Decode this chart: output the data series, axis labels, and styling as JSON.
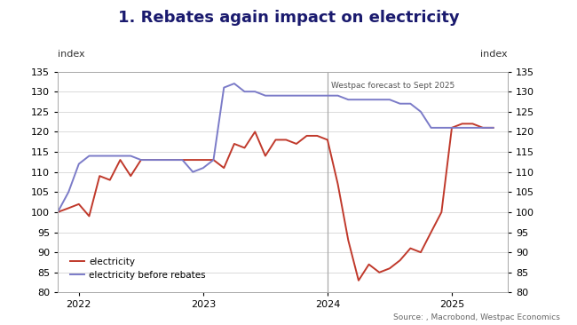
{
  "title": "1. Rebates again impact on electricity",
  "ylabel_left": "index",
  "ylabel_right": "index",
  "source": "Source: , Macrobond, Westpac Economics",
  "forecast_label": "Westpac forecast to Sept 2025",
  "forecast_x": 2024.0,
  "ylim": [
    80,
    135
  ],
  "yticks": [
    80,
    85,
    90,
    95,
    100,
    105,
    110,
    115,
    120,
    125,
    130,
    135
  ],
  "xlim_left": 2021.83,
  "xlim_right": 2025.45,
  "background_color": "#ffffff",
  "title_color": "#1a1a6e",
  "grid_color": "#cccccc",
  "elec_color": "#c0392b",
  "rebates_color": "#7b7bc8",
  "electricity_x": [
    2021.83,
    2021.917,
    2022.0,
    2022.083,
    2022.167,
    2022.25,
    2022.333,
    2022.417,
    2022.5,
    2022.583,
    2022.667,
    2022.75,
    2022.833,
    2022.917,
    2023.0,
    2023.083,
    2023.167,
    2023.25,
    2023.333,
    2023.417,
    2023.5,
    2023.583,
    2023.667,
    2023.75,
    2023.833,
    2023.917,
    2024.0,
    2024.083,
    2024.167,
    2024.25,
    2024.333,
    2024.417,
    2024.5,
    2024.583,
    2024.667,
    2024.75,
    2024.833,
    2024.917,
    2025.0,
    2025.083,
    2025.167,
    2025.25,
    2025.333
  ],
  "electricity_y": [
    100,
    101,
    102,
    99,
    109,
    108,
    113,
    109,
    113,
    113,
    113,
    113,
    113,
    113,
    113,
    113,
    111,
    117,
    116,
    120,
    114,
    118,
    118,
    117,
    119,
    119,
    118,
    107,
    93,
    83,
    87,
    85,
    86,
    88,
    91,
    90,
    95,
    100,
    121,
    122,
    122,
    121,
    121
  ],
  "rebates_x": [
    2021.83,
    2021.917,
    2022.0,
    2022.083,
    2022.167,
    2022.25,
    2022.333,
    2022.417,
    2022.5,
    2022.583,
    2022.667,
    2022.75,
    2022.833,
    2022.917,
    2023.0,
    2023.083,
    2023.167,
    2023.25,
    2023.333,
    2023.417,
    2023.5,
    2023.583,
    2023.667,
    2023.75,
    2023.833,
    2023.917,
    2024.0,
    2024.083,
    2024.167,
    2024.25,
    2024.333,
    2024.417,
    2024.5,
    2024.583,
    2024.667,
    2024.75,
    2024.833,
    2024.917,
    2025.0,
    2025.083,
    2025.167,
    2025.25,
    2025.333
  ],
  "rebates_y": [
    100,
    105,
    112,
    114,
    114,
    114,
    114,
    114,
    113,
    113,
    113,
    113,
    113,
    110,
    111,
    113,
    131,
    132,
    130,
    130,
    129,
    129,
    129,
    129,
    129,
    129,
    129,
    129,
    128,
    128,
    128,
    128,
    128,
    127,
    127,
    125,
    121,
    121,
    121,
    121,
    121,
    121,
    121
  ]
}
